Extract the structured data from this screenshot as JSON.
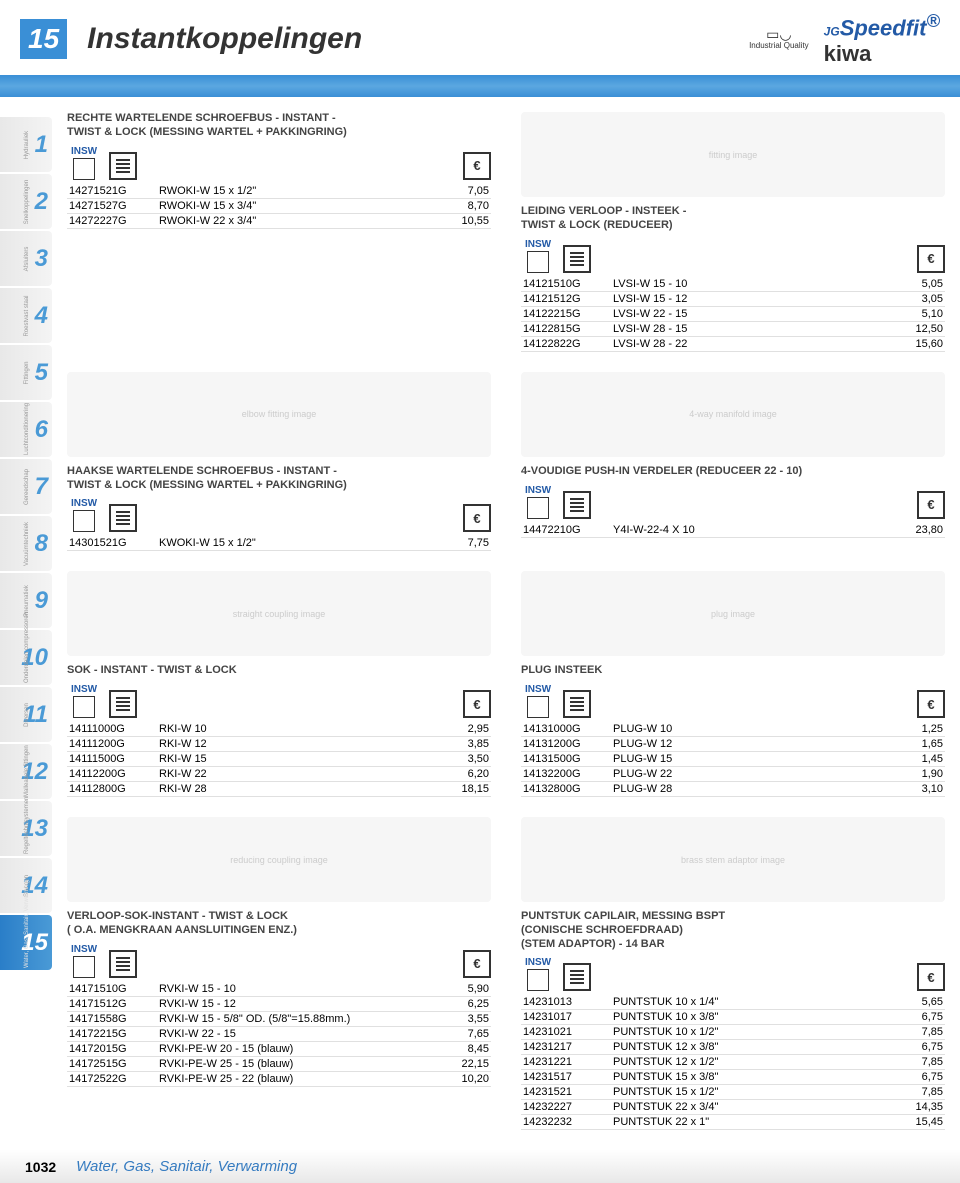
{
  "header": {
    "section_num": "15",
    "title": "Instantkoppelingen",
    "iq_text": "Industrial Quality",
    "speedfit_jg": "JG",
    "speedfit": "Speedfit",
    "kiwa": "kiwa",
    "reg_mark": "®"
  },
  "sidebar": [
    {
      "num": "1",
      "label": "Hydrauliek"
    },
    {
      "num": "2",
      "label": "Snelkoppelingen"
    },
    {
      "num": "3",
      "label": "Afsluiters"
    },
    {
      "num": "4",
      "label": "Roestvast staal"
    },
    {
      "num": "5",
      "label": "Fittingen"
    },
    {
      "num": "6",
      "label": "Luchtconditionering"
    },
    {
      "num": "7",
      "label": "Gereedschap"
    },
    {
      "num": "8",
      "label": "Vacuümtechniek"
    },
    {
      "num": "9",
      "label": "Pneumatiek"
    },
    {
      "num": "10",
      "label": "Onderdelen compressoren"
    },
    {
      "num": "11",
      "label": "Diversen"
    },
    {
      "num": "12",
      "label": "Malleabele fittingen"
    },
    {
      "num": "13",
      "label": "Regeltechnisystemen"
    },
    {
      "num": "14",
      "label": "Slangen"
    },
    {
      "num": "15",
      "label": "Water, Gas, Sanitair, Verwarming"
    }
  ],
  "insw_label": "INSW",
  "euro_sign": "€",
  "blocks": {
    "b1": {
      "title": "RECHTE WARTELENDE SCHROEFBUS - INSTANT -\nTWIST & LOCK (MESSING WARTEL + PAKKINGRING)",
      "rows": [
        [
          "14271521G",
          "RWOKI-W 15 x 1/2\"",
          "7,05"
        ],
        [
          "14271527G",
          "RWOKI-W 15 x 3/4\"",
          "8,70"
        ],
        [
          "14272227G",
          "RWOKI-W 22 x 3/4\"",
          "10,55"
        ]
      ]
    },
    "b2": {
      "title": "LEIDING VERLOOP - INSTEEK -\nTWIST & LOCK (REDUCEER)",
      "rows": [
        [
          "14121510G",
          "LVSI-W 15 - 10",
          "5,05"
        ],
        [
          "14121512G",
          "LVSI-W 15 - 12",
          "3,05"
        ],
        [
          "14122215G",
          "LVSI-W 22 - 15",
          "5,10"
        ],
        [
          "14122815G",
          "LVSI-W 28 - 15",
          "12,50"
        ],
        [
          "14122822G",
          "LVSI-W 28 - 22",
          "15,60"
        ]
      ]
    },
    "b3": {
      "title": "HAAKSE WARTELENDE SCHROEFBUS - INSTANT -\nTWIST & LOCK (MESSING WARTEL + PAKKINGRING)",
      "rows": [
        [
          "14301521G",
          "KWOKI-W 15 x 1/2\"",
          "7,75"
        ]
      ]
    },
    "b4": {
      "title": "4-VOUDIGE PUSH-IN VERDELER (REDUCEER 22 - 10)",
      "rows": [
        [
          "14472210G",
          "Y4I-W-22-4 X 10",
          "23,80"
        ]
      ]
    },
    "b5": {
      "title": "SOK - INSTANT - TWIST & LOCK",
      "rows": [
        [
          "14111000G",
          "RKI-W 10",
          "2,95"
        ],
        [
          "14111200G",
          "RKI-W 12",
          "3,85"
        ],
        [
          "14111500G",
          "RKI-W 15",
          "3,50"
        ],
        [
          "14112200G",
          "RKI-W 22",
          "6,20"
        ],
        [
          "14112800G",
          "RKI-W 28",
          "18,15"
        ]
      ]
    },
    "b6": {
      "title": "PLUG INSTEEK",
      "rows": [
        [
          "14131000G",
          "PLUG-W 10",
          "1,25"
        ],
        [
          "14131200G",
          "PLUG-W 12",
          "1,65"
        ],
        [
          "14131500G",
          "PLUG-W 15",
          "1,45"
        ],
        [
          "14132200G",
          "PLUG-W 22",
          "1,90"
        ],
        [
          "14132800G",
          "PLUG-W 28",
          "3,10"
        ]
      ]
    },
    "b7": {
      "title": "VERLOOP-SOK-INSTANT - TWIST & LOCK\n( O.A. MENGKRAAN AANSLUITINGEN ENZ.)",
      "rows": [
        [
          "14171510G",
          "RVKI-W 15 - 10",
          "5,90"
        ],
        [
          "14171512G",
          "RVKI-W 15 - 12",
          "6,25"
        ],
        [
          "14171558G",
          "RVKI-W 15 - 5/8\" OD. (5/8\"=15.88mm.)",
          "3,55"
        ],
        [
          "14172215G",
          "RVKI-W 22 - 15",
          "7,65"
        ],
        [
          "14172015G",
          "RVKI-PE-W 20 - 15 (blauw)",
          "8,45"
        ],
        [
          "14172515G",
          "RVKI-PE-W 25 - 15 (blauw)",
          "22,15"
        ],
        [
          "14172522G",
          "RVKI-PE-W 25 - 22 (blauw)",
          "10,20"
        ]
      ]
    },
    "b8": {
      "title": "PUNTSTUK CAPILAIR, MESSING BSPT\n(CONISCHE SCHROEFDRAAD)\n(STEM ADAPTOR) - 14 BAR",
      "rows": [
        [
          "14231013",
          "PUNTSTUK 10 x 1/4\"",
          "5,65"
        ],
        [
          "14231017",
          "PUNTSTUK 10 x 3/8\"",
          "6,75"
        ],
        [
          "14231021",
          "PUNTSTUK 10 x 1/2\"",
          "7,85"
        ],
        [
          "14231217",
          "PUNTSTUK 12 x 3/8\"",
          "6,75"
        ],
        [
          "14231221",
          "PUNTSTUK 12 x 1/2\"",
          "7,85"
        ],
        [
          "14231517",
          "PUNTSTUK 15 x 3/8\"",
          "6,75"
        ],
        [
          "14231521",
          "PUNTSTUK 15 x 1/2\"",
          "7,85"
        ],
        [
          "14232227",
          "PUNTSTUK 22 x 3/4\"",
          "14,35"
        ],
        [
          "14232232",
          "PUNTSTUK 22 x 1\"",
          "15,45"
        ]
      ]
    }
  },
  "footer": {
    "pagenum": "1032",
    "breadcrumb": "Water, Gas, Sanitair, Verwarming"
  },
  "style": {
    "brand_blue": "#3a8fd6",
    "speedfit_blue": "#235aa6",
    "row_border": "#e0e0e0",
    "text": "#333333"
  }
}
